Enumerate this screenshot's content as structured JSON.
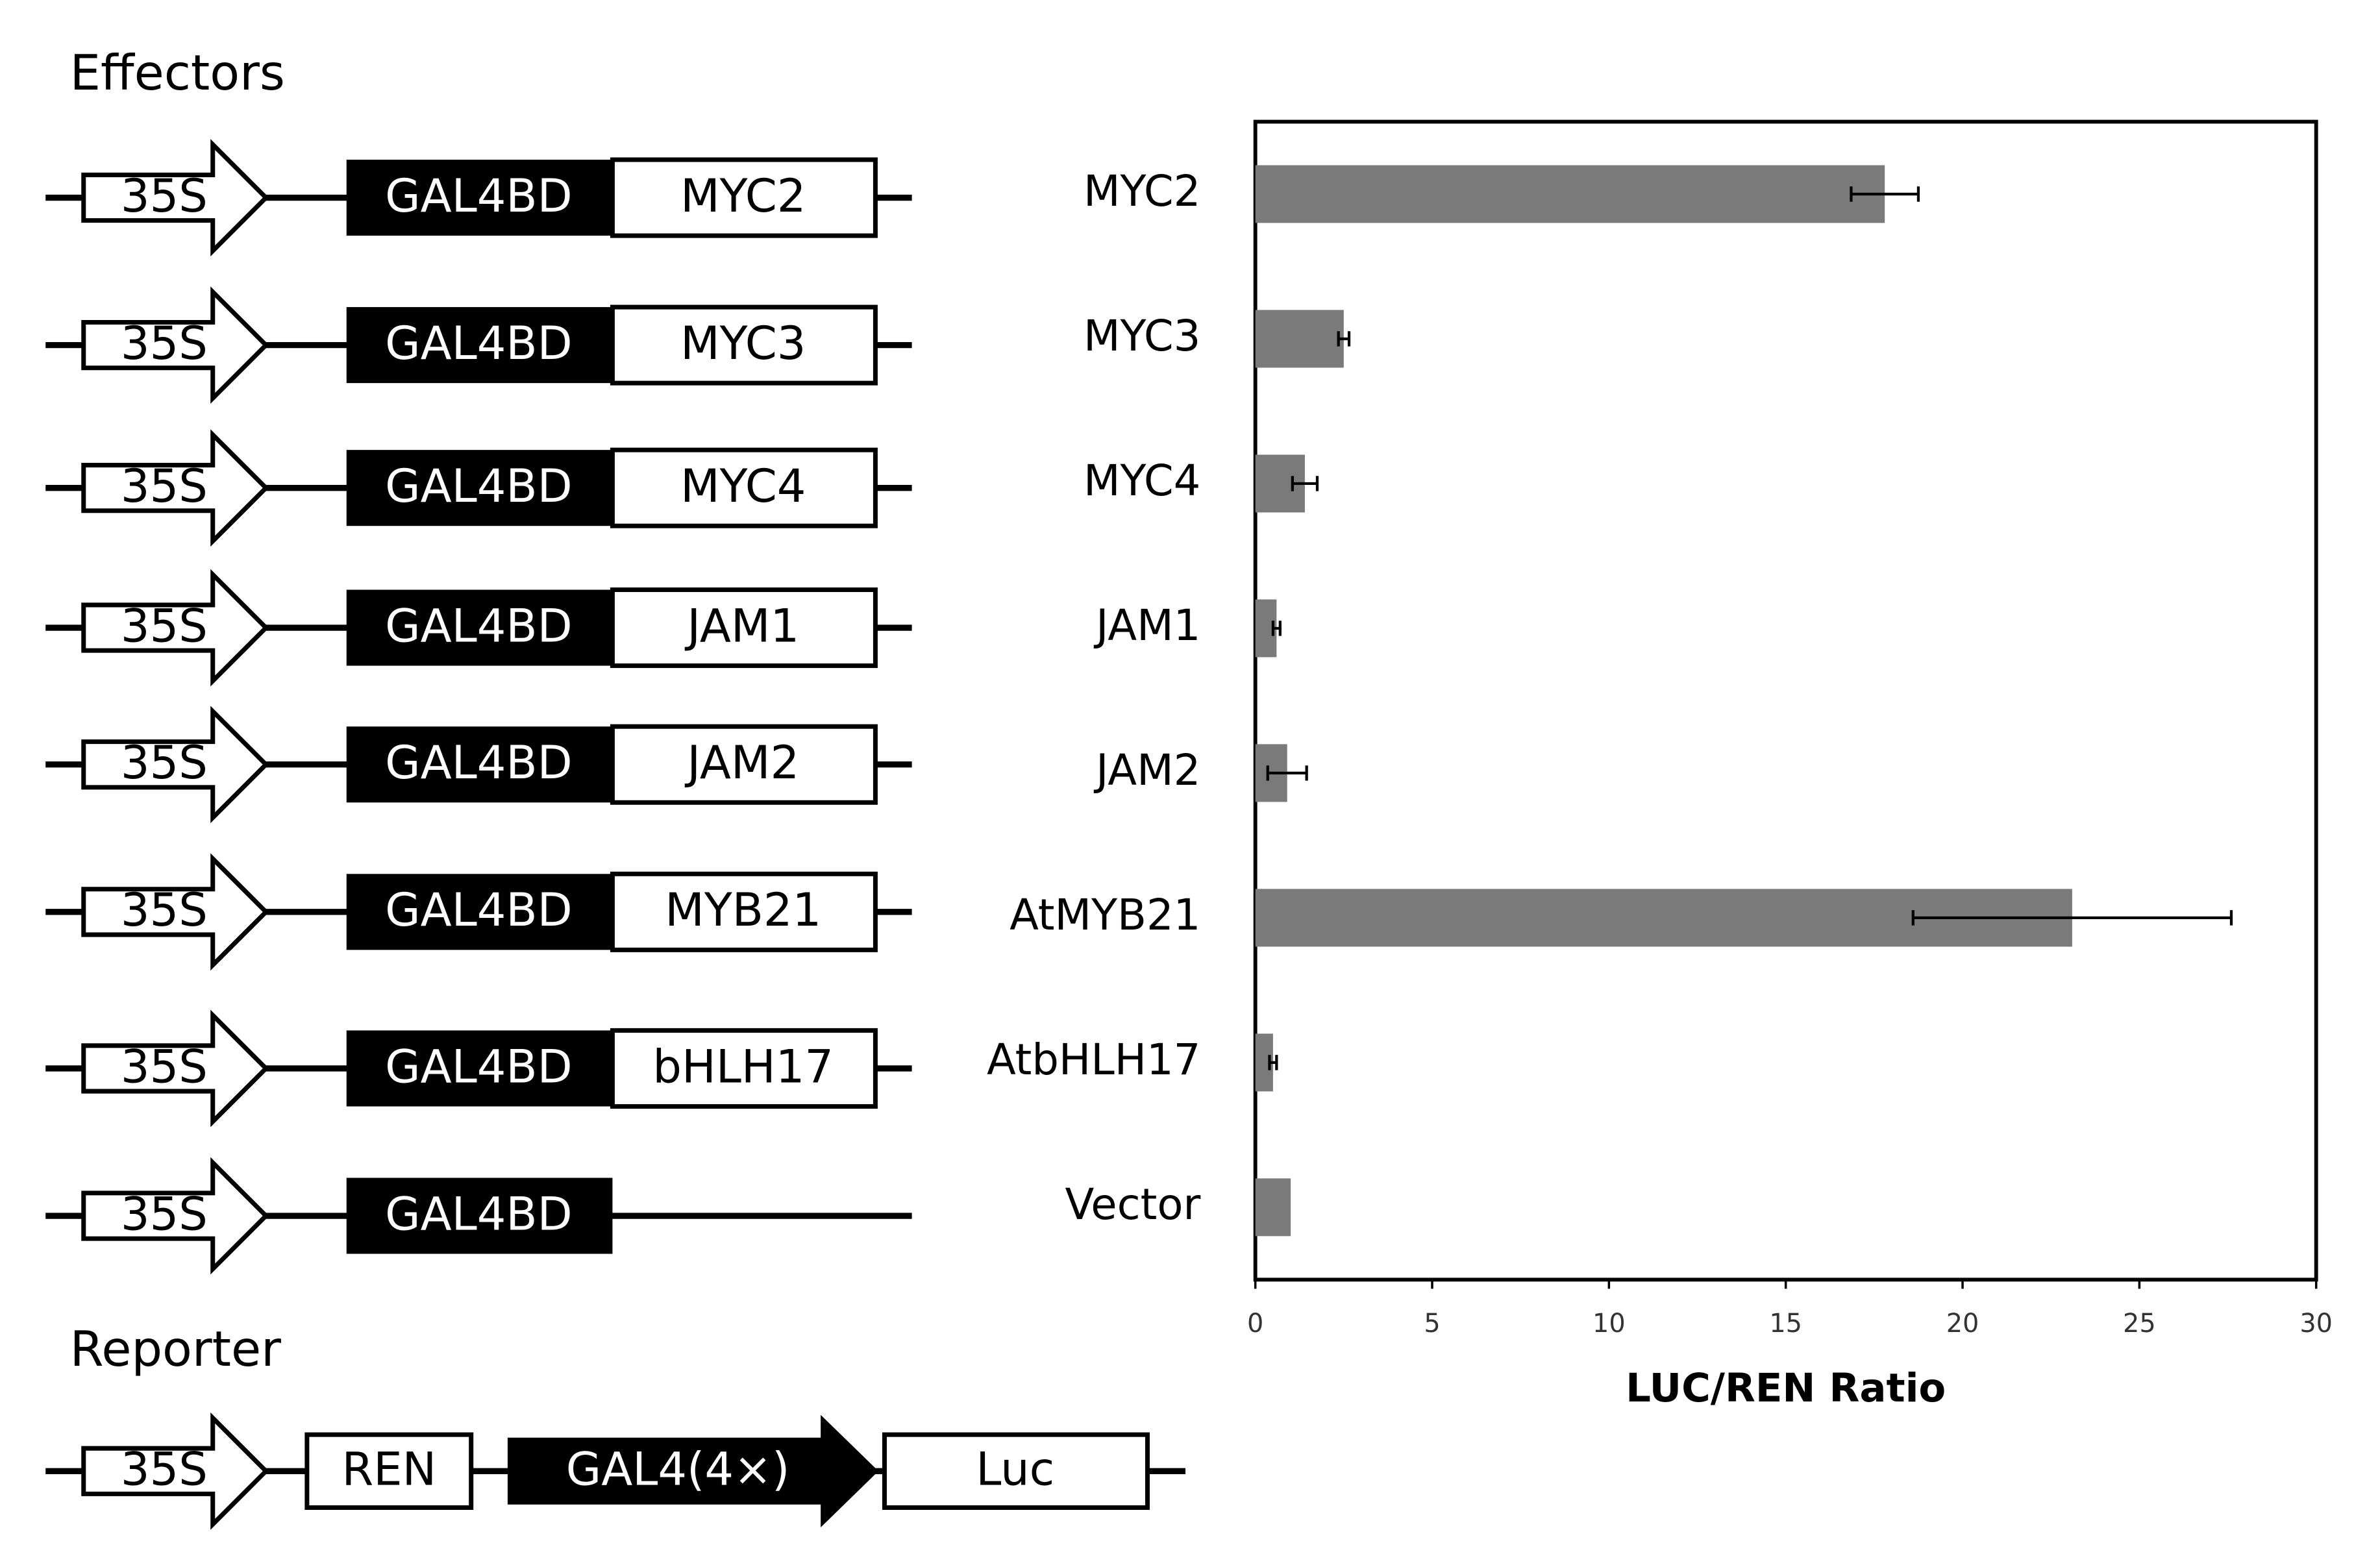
{
  "effectors": {
    "title": "Effectors",
    "constructs": [
      {
        "promoter": "35S",
        "domain": "GAL4BD",
        "fusion": "MYC2"
      },
      {
        "promoter": "35S",
        "domain": "GAL4BD",
        "fusion": "MYC3"
      },
      {
        "promoter": "35S",
        "domain": "GAL4BD",
        "fusion": "MYC4"
      },
      {
        "promoter": "35S",
        "domain": "GAL4BD",
        "fusion": "JAM1"
      },
      {
        "promoter": "35S",
        "domain": "GAL4BD",
        "fusion": "JAM2"
      },
      {
        "promoter": "35S",
        "domain": "GAL4BD",
        "fusion": "MYB21"
      },
      {
        "promoter": "35S",
        "domain": "GAL4BD",
        "fusion": "bHLH17"
      },
      {
        "promoter": "35S",
        "domain": "GAL4BD"
      }
    ]
  },
  "reporter": {
    "title": "Reporter",
    "promoter": "35S",
    "gene1": "REN",
    "element": "GAL4(4×)",
    "gene2": "Luc"
  },
  "chart_data": {
    "type": "hbar",
    "xlabel": "LUC/REN Ratio",
    "categories": [
      "MYC2",
      "MYC3",
      "MYC4",
      "JAM1",
      "JAM2",
      "AtMYB21",
      "AtbHLH17",
      "Vector"
    ],
    "values": [
      17.8,
      2.5,
      1.4,
      0.6,
      0.9,
      23.1,
      0.5,
      1.0
    ],
    "errors": [
      0.95,
      0.15,
      0.35,
      0.1,
      0.55,
      4.5,
      0.1,
      null
    ],
    "color": "#7a7a7a",
    "xlim": [
      0,
      30
    ],
    "xticks": [
      0,
      5,
      10,
      15,
      20,
      25,
      30
    ]
  }
}
